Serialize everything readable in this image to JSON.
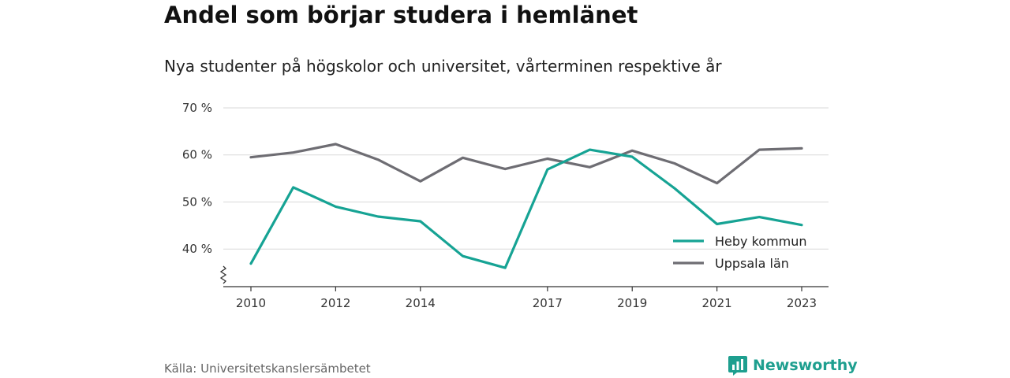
{
  "title": "Andel som börjar studera i hemlänet",
  "subtitle": "Nya studenter på högskolor och universitet, vårterminen respektive år",
  "source": "Källa: Universitetskanslersämbetet",
  "brand": {
    "name": "Newsworthy",
    "icon": "bar-chart-speech-bubble-icon",
    "color": "#1e9f8f"
  },
  "chart_data": {
    "type": "line",
    "x": [
      2010,
      2011,
      2012,
      2013,
      2014,
      2015,
      2016,
      2017,
      2018,
      2019,
      2020,
      2021,
      2022,
      2023
    ],
    "x_ticks": [
      2010,
      2012,
      2014,
      2017,
      2019,
      2021,
      2023
    ],
    "x_tick_labels": [
      "2010",
      "2012",
      "2014",
      "2017",
      "2019",
      "2021",
      "2023"
    ],
    "y_ticks": [
      40,
      50,
      60,
      70
    ],
    "y_tick_labels": [
      "40 %",
      "50 %",
      "60 %",
      "70 %"
    ],
    "ylim": [
      32,
      71
    ],
    "axis_break": true,
    "grid": true,
    "legend_position": "bottom-right",
    "series": [
      {
        "name": "Heby kommun",
        "color": "#16a394",
        "values": [
          36.9,
          53.1,
          49.0,
          46.9,
          45.9,
          38.5,
          36.0,
          56.9,
          61.1,
          59.6,
          52.9,
          45.3,
          46.8,
          45.1
        ]
      },
      {
        "name": "Uppsala län",
        "color": "#6e6d73",
        "values": [
          59.5,
          60.5,
          62.3,
          59.0,
          54.4,
          59.4,
          57.0,
          59.2,
          57.4,
          60.9,
          58.2,
          54.0,
          61.1,
          61.4
        ]
      }
    ]
  }
}
